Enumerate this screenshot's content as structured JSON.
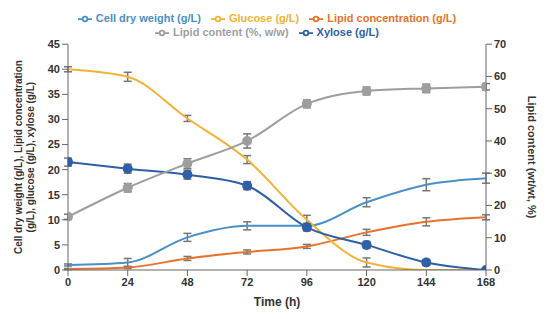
{
  "chart_data": {
    "type": "line",
    "x_label": "Time (h)",
    "y_label": "Cell dry weight (g/L), Lipid concentration (g/L), glucose (g/L), xylose (g/L)",
    "y2_label": "Lipid content (wt/wt, %)",
    "x": [
      0,
      24,
      48,
      72,
      96,
      120,
      144,
      168
    ],
    "xlim": [
      0,
      168
    ],
    "xticks": [
      0,
      24,
      48,
      72,
      96,
      120,
      144,
      168
    ],
    "ylim": [
      0,
      45
    ],
    "yticks": [
      0,
      5,
      10,
      15,
      20,
      25,
      30,
      35,
      40,
      45
    ],
    "y2lim": [
      0,
      70
    ],
    "y2ticks": [
      0,
      10,
      20,
      30,
      40,
      50,
      60,
      70
    ],
    "grid": false,
    "legend": "top",
    "series": [
      {
        "name": "Cell dry weight (g/L)",
        "color": "#4a90c8",
        "marker": "none",
        "values": [
          1.0,
          1.5,
          6.5,
          8.8,
          8.8,
          13.5,
          17.0,
          18.3
        ],
        "errors": [
          0.2,
          0.8,
          0.8,
          0.8,
          0.5,
          0.9,
          1.2,
          1.0
        ]
      },
      {
        "name": "Lipid concentration (g/L)",
        "color": "#e8722a",
        "marker": "none",
        "values": [
          0.2,
          0.5,
          2.3,
          3.6,
          4.7,
          7.5,
          9.6,
          10.5
        ],
        "errors": [
          0.1,
          0.2,
          0.4,
          0.4,
          0.4,
          0.6,
          0.8,
          0.5
        ]
      },
      {
        "name": "Glucose (g/L)",
        "color": "#f2b233",
        "marker": "none",
        "values": [
          40.0,
          38.5,
          30.2,
          22.0,
          10.0,
          1.5,
          0,
          0
        ],
        "errors": [
          0.5,
          0.9,
          0.6,
          0.8,
          0.9,
          0.9,
          0,
          0
        ]
      },
      {
        "name": "Xylose (g/L)",
        "color": "#2e5fa8",
        "marker": "circle",
        "values": [
          21.5,
          20.2,
          19.0,
          16.8,
          8.5,
          5.0,
          1.5,
          0
        ],
        "errors": [
          0.8,
          0.9,
          0.9,
          0.8,
          0.7,
          0.7,
          0.6,
          0
        ]
      },
      {
        "name": "Lipid content (%, w/w)",
        "color": "#9e9e9e",
        "marker": "circle",
        "axis": "y2",
        "values": [
          16.5,
          25.5,
          33.0,
          40.0,
          51.5,
          55.5,
          56.3,
          56.8
        ],
        "errors": [
          0.8,
          1.3,
          1.5,
          2.2,
          1.2,
          1.2,
          1.3,
          1.0
        ]
      }
    ]
  }
}
